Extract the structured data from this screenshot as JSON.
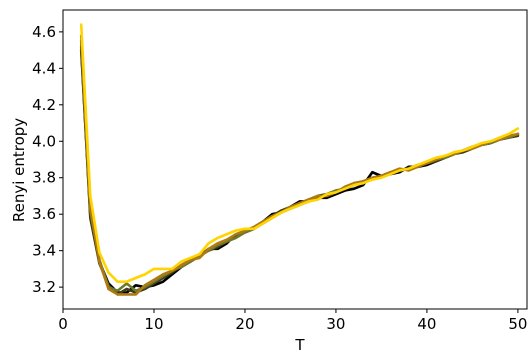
{
  "chart_data": {
    "type": "line",
    "xlabel": "T",
    "ylabel": "Renyi entropy",
    "xlim": [
      0,
      51
    ],
    "ylim": [
      3.08,
      4.72
    ],
    "xticks": [
      0,
      10,
      20,
      30,
      40,
      50
    ],
    "yticks": [
      3.2,
      3.4,
      3.6,
      3.8,
      4.0,
      4.2,
      4.4,
      4.6
    ],
    "xtick_labels": [
      "0",
      "10",
      "20",
      "30",
      "40",
      "50"
    ],
    "ytick_labels": [
      "3.2",
      "3.4",
      "3.6",
      "3.8",
      "4.0",
      "4.2",
      "4.4",
      "4.6"
    ],
    "grid": false,
    "legend": false,
    "series": [
      {
        "color": "#000000",
        "x": [
          2,
          3,
          4,
          5,
          6,
          7,
          8,
          9,
          10,
          11,
          12,
          13,
          14,
          15,
          16,
          17,
          18,
          19,
          20,
          21,
          22,
          23,
          24,
          25,
          26,
          27,
          28,
          29,
          30,
          31,
          32,
          33,
          34,
          35,
          36,
          37,
          38,
          39,
          40,
          41,
          42,
          43,
          44,
          45,
          46,
          47,
          48,
          49,
          50
        ],
        "y": [
          4.5,
          3.6,
          3.34,
          3.22,
          3.17,
          3.17,
          3.21,
          3.2,
          3.21,
          3.23,
          3.27,
          3.31,
          3.34,
          3.37,
          3.41,
          3.41,
          3.44,
          3.49,
          3.5,
          3.52,
          3.56,
          3.6,
          3.61,
          3.64,
          3.67,
          3.67,
          3.69,
          3.69,
          3.71,
          3.73,
          3.74,
          3.76,
          3.83,
          3.81,
          3.82,
          3.83,
          3.86,
          3.86,
          3.87,
          3.89,
          3.91,
          3.93,
          3.95,
          3.97,
          3.98,
          3.99,
          4.01,
          4.02,
          4.04
        ]
      },
      {
        "color": "#3c3a18",
        "x": [
          2,
          3,
          4,
          5,
          6,
          7,
          8,
          9,
          10,
          11,
          12,
          13,
          14,
          15,
          16,
          17,
          18,
          19,
          20,
          21,
          22,
          23,
          24,
          25,
          26,
          27,
          28,
          29,
          30,
          31,
          32,
          33,
          34,
          35,
          36,
          37,
          38,
          39,
          40,
          41,
          42,
          43,
          44,
          45,
          46,
          47,
          48,
          49,
          50
        ],
        "y": [
          4.52,
          3.58,
          3.33,
          3.21,
          3.16,
          3.19,
          3.17,
          3.19,
          3.22,
          3.25,
          3.28,
          3.32,
          3.35,
          3.38,
          3.4,
          3.42,
          3.45,
          3.48,
          3.5,
          3.53,
          3.56,
          3.59,
          3.62,
          3.64,
          3.66,
          3.68,
          3.7,
          3.71,
          3.72,
          3.75,
          3.77,
          3.78,
          3.8,
          3.81,
          3.83,
          3.84,
          3.85,
          3.87,
          3.88,
          3.89,
          3.91,
          3.93,
          3.94,
          3.96,
          3.98,
          3.99,
          4.01,
          4.02,
          4.03
        ]
      },
      {
        "color": "#6b7a2a",
        "x": [
          2,
          3,
          4,
          5,
          6,
          7,
          8,
          9,
          10,
          11,
          12,
          13,
          14,
          15,
          16,
          17,
          18,
          19,
          20,
          21,
          22,
          23,
          24,
          25,
          26,
          27,
          28,
          29,
          30,
          31,
          32,
          33,
          34,
          35,
          36,
          37,
          38,
          39,
          40,
          41,
          42,
          43,
          44,
          45,
          46,
          47,
          48,
          49,
          50
        ],
        "y": [
          4.55,
          3.62,
          3.35,
          3.2,
          3.18,
          3.22,
          3.18,
          3.2,
          3.23,
          3.26,
          3.29,
          3.31,
          3.34,
          3.37,
          3.4,
          3.43,
          3.45,
          3.47,
          3.5,
          3.52,
          3.55,
          3.58,
          3.61,
          3.63,
          3.65,
          3.67,
          3.69,
          3.71,
          3.73,
          3.74,
          3.76,
          3.78,
          3.79,
          3.81,
          3.82,
          3.84,
          3.85,
          3.87,
          3.88,
          3.9,
          3.91,
          3.93,
          3.95,
          3.96,
          3.98,
          3.99,
          4.01,
          4.02,
          4.04
        ]
      },
      {
        "color": "#b07a10",
        "x": [
          2,
          3,
          4,
          5,
          6,
          7,
          8,
          9,
          10,
          11,
          12,
          13,
          14,
          15,
          16,
          17,
          18,
          19,
          20,
          21,
          22,
          23,
          24,
          25,
          26,
          27,
          28,
          29,
          30,
          31,
          32,
          33,
          34,
          35,
          36,
          37,
          38,
          39,
          40,
          41,
          42,
          43,
          44,
          45,
          46,
          47,
          48,
          49,
          50
        ],
        "y": [
          4.58,
          3.63,
          3.34,
          3.19,
          3.16,
          3.16,
          3.16,
          3.21,
          3.24,
          3.27,
          3.29,
          3.32,
          3.35,
          3.36,
          3.41,
          3.44,
          3.46,
          3.49,
          3.51,
          3.53,
          3.56,
          3.59,
          3.61,
          3.64,
          3.66,
          3.68,
          3.7,
          3.7,
          3.72,
          3.75,
          3.77,
          3.78,
          3.8,
          3.81,
          3.83,
          3.85,
          3.84,
          3.86,
          3.88,
          3.9,
          3.92,
          3.93,
          3.95,
          3.96,
          3.98,
          4.0,
          4.01,
          4.03,
          4.04
        ]
      },
      {
        "color": "#ffd400",
        "x": [
          2,
          3,
          4,
          5,
          6,
          7,
          8,
          9,
          10,
          11,
          12,
          13,
          14,
          15,
          16,
          17,
          18,
          19,
          20,
          21,
          22,
          23,
          24,
          25,
          26,
          27,
          28,
          29,
          30,
          31,
          32,
          33,
          34,
          35,
          36,
          37,
          38,
          39,
          40,
          41,
          42,
          43,
          44,
          45,
          46,
          47,
          48,
          49,
          50
        ],
        "y": [
          4.64,
          3.7,
          3.39,
          3.28,
          3.23,
          3.23,
          3.25,
          3.27,
          3.3,
          3.3,
          3.3,
          3.34,
          3.36,
          3.38,
          3.44,
          3.47,
          3.49,
          3.51,
          3.52,
          3.52,
          3.55,
          3.58,
          3.61,
          3.63,
          3.65,
          3.67,
          3.68,
          3.71,
          3.72,
          3.74,
          3.76,
          3.77,
          3.79,
          3.8,
          3.82,
          3.84,
          3.85,
          3.87,
          3.89,
          3.91,
          3.92,
          3.94,
          3.95,
          3.97,
          3.99,
          4.0,
          4.02,
          4.04,
          4.07
        ]
      }
    ]
  }
}
